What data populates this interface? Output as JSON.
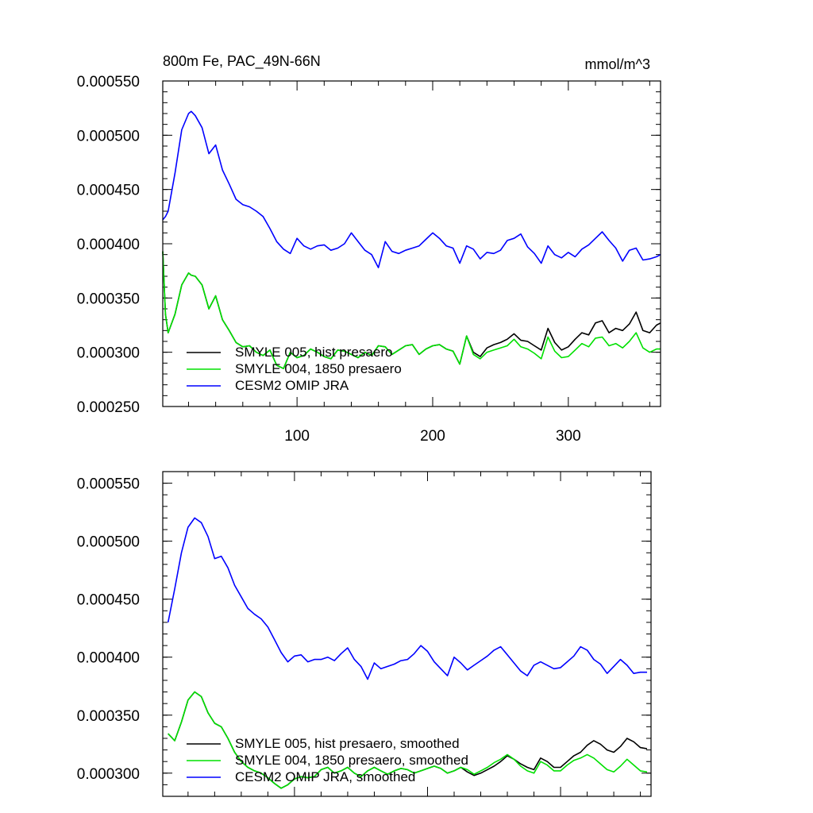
{
  "figure": {
    "title_left": "800m Fe, PAC_49N-66N",
    "title_right": "mmol/m^3"
  },
  "chart_data": [
    {
      "type": "line",
      "title": "800m Fe, PAC_49N-66N",
      "units": "mmol/m^3",
      "xlim": [
        1,
        368
      ],
      "ylim": [
        0.00025,
        0.00055
      ],
      "xticks": [
        100,
        200,
        300
      ],
      "xtick_labels": [
        "100",
        "200",
        "300"
      ],
      "yticks": [
        0.00025,
        0.0003,
        0.00035,
        0.0004,
        0.00045,
        0.0005,
        0.00055
      ],
      "ytick_labels": [
        "0.000250",
        "0.000300",
        "0.000350",
        "0.000400",
        "0.000450",
        "0.000500",
        "0.000550"
      ],
      "grid": false,
      "legend_position": "bottom-left",
      "x": [
        1,
        3,
        5,
        10,
        15,
        20,
        22,
        25,
        30,
        35,
        40,
        45,
        50,
        55,
        60,
        65,
        70,
        75,
        80,
        85,
        90,
        95,
        100,
        105,
        110,
        115,
        120,
        125,
        130,
        135,
        140,
        145,
        150,
        155,
        160,
        165,
        170,
        175,
        180,
        185,
        190,
        195,
        200,
        205,
        210,
        215,
        220,
        225,
        230,
        235,
        240,
        245,
        250,
        255,
        260,
        265,
        270,
        275,
        280,
        285,
        290,
        295,
        300,
        305,
        310,
        315,
        320,
        325,
        330,
        335,
        340,
        345,
        350,
        355,
        360,
        365,
        368
      ],
      "series": [
        {
          "name": "SMYLE 005, hist presaero",
          "color": "#000000",
          "values": [
            0.000393,
            0.000335,
            0.000318,
            0.000335,
            0.000362,
            0.000373,
            0.000371,
            0.00037,
            0.000362,
            0.00034,
            0.000352,
            0.00033,
            0.00032,
            0.000309,
            0.000305,
            0.000306,
            0.0003,
            0.000297,
            0.000302,
            0.000288,
            0.000285,
            0.0003,
            0.000295,
            0.000297,
            0.000303,
            0.0003,
            0.000296,
            0.000294,
            0.000302,
            0.000301,
            0.000298,
            0.000295,
            0.0003,
            0.000297,
            0.000306,
            0.000305,
            0.000298,
            0.000302,
            0.000306,
            0.000307,
            0.000298,
            0.000303,
            0.000306,
            0.000307,
            0.000303,
            0.000301,
            0.000289,
            0.000315,
            0.0003,
            0.000296,
            0.000304,
            0.000307,
            0.000309,
            0.000312,
            0.000317,
            0.000311,
            0.00031,
            0.000306,
            0.000302,
            0.000322,
            0.000309,
            0.000302,
            0.000305,
            0.000312,
            0.000318,
            0.000316,
            0.000327,
            0.000329,
            0.000318,
            0.000322,
            0.00032,
            0.000326,
            0.000337,
            0.00032,
            0.000318,
            0.000325,
            0.000327
          ]
        },
        {
          "name": "SMYLE 004, 1850 presaero",
          "color": "#00e000",
          "values": [
            0.000393,
            0.000335,
            0.000318,
            0.000335,
            0.000362,
            0.000373,
            0.000371,
            0.00037,
            0.000362,
            0.00034,
            0.000352,
            0.00033,
            0.00032,
            0.000309,
            0.000305,
            0.000306,
            0.0003,
            0.000297,
            0.000302,
            0.000288,
            0.000285,
            0.0003,
            0.000295,
            0.000297,
            0.000303,
            0.0003,
            0.000296,
            0.000294,
            0.000302,
            0.000301,
            0.000298,
            0.000295,
            0.0003,
            0.000297,
            0.000306,
            0.000305,
            0.000298,
            0.000302,
            0.000306,
            0.000307,
            0.000298,
            0.000303,
            0.000306,
            0.000307,
            0.000303,
            0.000301,
            0.000289,
            0.000315,
            0.000298,
            0.000294,
            0.0003,
            0.000302,
            0.000304,
            0.000306,
            0.000312,
            0.000305,
            0.000303,
            0.000299,
            0.000294,
            0.000314,
            0.000301,
            0.000295,
            0.000296,
            0.000302,
            0.000308,
            0.000305,
            0.000313,
            0.000314,
            0.000306,
            0.000308,
            0.000304,
            0.00031,
            0.000318,
            0.000304,
            0.0003,
            0.000303,
            0.000303
          ]
        },
        {
          "name": "CESM2 OMIP JRA",
          "color": "#0000ff",
          "values": [
            0.000422,
            0.000425,
            0.00043,
            0.000465,
            0.000505,
            0.00052,
            0.000522,
            0.000518,
            0.000507,
            0.000483,
            0.000491,
            0.000468,
            0.000455,
            0.000441,
            0.000436,
            0.000434,
            0.00043,
            0.000425,
            0.000414,
            0.000402,
            0.000395,
            0.000391,
            0.000405,
            0.000398,
            0.000395,
            0.000398,
            0.000399,
            0.000394,
            0.000396,
            0.0004,
            0.00041,
            0.000402,
            0.000394,
            0.00039,
            0.000378,
            0.000402,
            0.000393,
            0.000391,
            0.000394,
            0.000396,
            0.000398,
            0.000404,
            0.00041,
            0.000405,
            0.000398,
            0.000396,
            0.000382,
            0.000398,
            0.000395,
            0.000386,
            0.000392,
            0.000391,
            0.000394,
            0.000403,
            0.000405,
            0.000409,
            0.000397,
            0.000391,
            0.000382,
            0.000398,
            0.00039,
            0.000387,
            0.000392,
            0.000388,
            0.000395,
            0.000399,
            0.000405,
            0.000411,
            0.000403,
            0.000396,
            0.000384,
            0.000394,
            0.000396,
            0.000385,
            0.000386,
            0.000388,
            0.00039
          ]
        }
      ]
    },
    {
      "type": "line",
      "title": "",
      "xlim": [
        1,
        368
      ],
      "ylim": [
        0.00028,
        0.00056
      ],
      "xticks": [
        100,
        200,
        300
      ],
      "xtick_labels": [],
      "yticks": [
        0.0003,
        0.00035,
        0.0004,
        0.00045,
        0.0005,
        0.00055
      ],
      "ytick_labels": [
        "0.000300",
        "0.000350",
        "0.000400",
        "0.000450",
        "0.000500",
        "0.000550"
      ],
      "grid": false,
      "legend_position": "bottom-left",
      "x": [
        5,
        10,
        15,
        20,
        25,
        30,
        35,
        40,
        45,
        50,
        55,
        60,
        65,
        70,
        75,
        80,
        85,
        90,
        95,
        100,
        105,
        110,
        115,
        120,
        125,
        130,
        135,
        140,
        145,
        150,
        155,
        160,
        165,
        170,
        175,
        180,
        185,
        190,
        195,
        200,
        205,
        210,
        215,
        220,
        225,
        230,
        235,
        240,
        245,
        250,
        255,
        260,
        265,
        270,
        275,
        280,
        285,
        290,
        295,
        300,
        305,
        310,
        315,
        320,
        325,
        330,
        335,
        340,
        345,
        350,
        355,
        360,
        365
      ],
      "series": [
        {
          "name": "SMYLE 005, hist presaero, smoothed",
          "color": "#000000",
          "values": [
            0.000334,
            0.000328,
            0.000344,
            0.000363,
            0.00037,
            0.000366,
            0.000352,
            0.000343,
            0.00034,
            0.00033,
            0.000318,
            0.00031,
            0.000305,
            0.000302,
            0.0003,
            0.000296,
            0.000291,
            0.000287,
            0.00029,
            0.000295,
            0.000297,
            0.000296,
            0.000297,
            0.000303,
            0.000305,
            0.0003,
            0.000302,
            0.000305,
            0.0003,
            0.000297,
            0.000302,
            0.000305,
            0.000302,
            0.000299,
            0.000302,
            0.000304,
            0.000303,
            0.0003,
            0.000302,
            0.000304,
            0.000306,
            0.000304,
            0.0003,
            0.000302,
            0.000305,
            0.000301,
            0.000298,
            0.0003,
            0.000303,
            0.000306,
            0.00031,
            0.000315,
            0.000312,
            0.000308,
            0.000305,
            0.000303,
            0.000313,
            0.00031,
            0.000305,
            0.000305,
            0.00031,
            0.000315,
            0.000318,
            0.000324,
            0.000328,
            0.000325,
            0.00032,
            0.000318,
            0.000323,
            0.00033,
            0.000327,
            0.000322,
            0.000321
          ]
        },
        {
          "name": "SMYLE 004, 1850 presaero, smoothed",
          "color": "#00e000",
          "values": [
            0.000334,
            0.000328,
            0.000344,
            0.000363,
            0.00037,
            0.000366,
            0.000352,
            0.000343,
            0.00034,
            0.00033,
            0.000318,
            0.00031,
            0.000305,
            0.000302,
            0.0003,
            0.000296,
            0.000291,
            0.000287,
            0.00029,
            0.000295,
            0.000297,
            0.000296,
            0.000297,
            0.000303,
            0.000305,
            0.0003,
            0.000302,
            0.000305,
            0.0003,
            0.000297,
            0.000302,
            0.000305,
            0.000302,
            0.000299,
            0.000302,
            0.000304,
            0.000303,
            0.0003,
            0.000302,
            0.000304,
            0.000306,
            0.000304,
            0.0003,
            0.000302,
            0.000305,
            0.000303,
            0.000299,
            0.000302,
            0.000305,
            0.000309,
            0.000312,
            0.000316,
            0.000312,
            0.000306,
            0.000302,
            0.0003,
            0.00031,
            0.000307,
            0.000302,
            0.000302,
            0.000307,
            0.000311,
            0.000313,
            0.000316,
            0.000313,
            0.000308,
            0.000303,
            0.000301,
            0.000306,
            0.000312,
            0.000307,
            0.000302,
            0.000301
          ]
        },
        {
          "name": "CESM2 OMIP JRA, smoothed",
          "color": "#0000ff",
          "values": [
            0.00043,
            0.000459,
            0.00049,
            0.000512,
            0.00052,
            0.000516,
            0.000504,
            0.000485,
            0.000487,
            0.000477,
            0.000462,
            0.000452,
            0.000442,
            0.000437,
            0.000433,
            0.000426,
            0.000415,
            0.000404,
            0.000396,
            0.000401,
            0.000402,
            0.000396,
            0.000398,
            0.000398,
            0.0004,
            0.000397,
            0.000403,
            0.000408,
            0.000398,
            0.000392,
            0.000381,
            0.000395,
            0.00039,
            0.000392,
            0.000394,
            0.000397,
            0.000398,
            0.000403,
            0.00041,
            0.000405,
            0.000396,
            0.00039,
            0.000384,
            0.0004,
            0.000395,
            0.000389,
            0.000393,
            0.000397,
            0.000401,
            0.000406,
            0.000409,
            0.000402,
            0.000395,
            0.000388,
            0.000384,
            0.000393,
            0.000396,
            0.000393,
            0.00039,
            0.000391,
            0.000396,
            0.000401,
            0.000409,
            0.000406,
            0.000398,
            0.000394,
            0.000386,
            0.000392,
            0.000398,
            0.000393,
            0.000386,
            0.000387,
            0.000387
          ]
        }
      ]
    }
  ]
}
